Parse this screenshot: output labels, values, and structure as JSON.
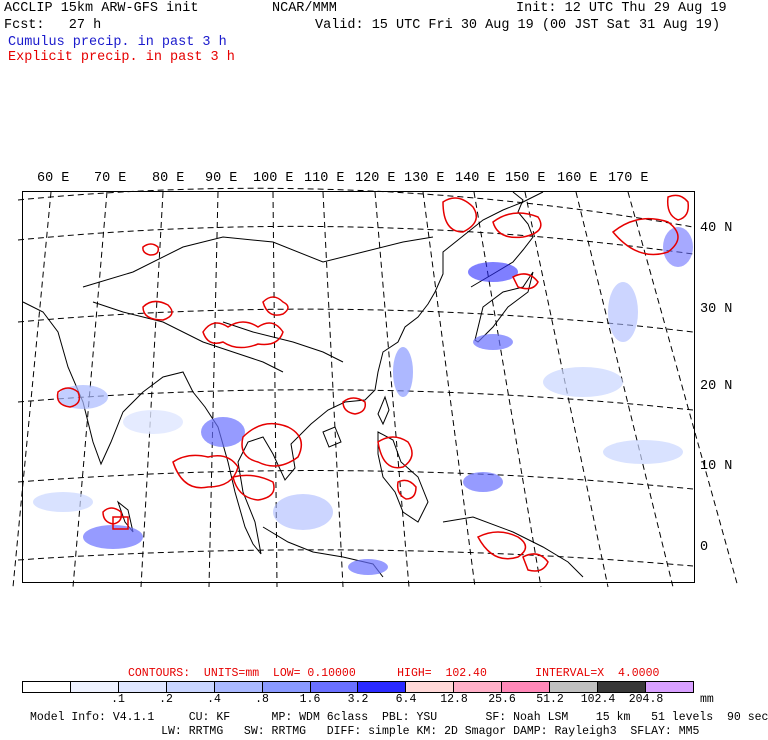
{
  "header": {
    "line1_left": "ACCLIP 15km ARW-GFS init",
    "line1_center": "NCAR/MMM",
    "line1_right": "Init: 12 UTC Thu 29 Aug 19",
    "line2_left": "Fcst:   27 h",
    "line2_right": "Valid: 15 UTC Fri 30 Aug 19 (00 JST Sat 31 Aug 19)",
    "line3": "Cumulus precip. in past 3 h",
    "line4": "Explicit precip. in past 3 h"
  },
  "map": {
    "lon_labels": [
      "60 E",
      "70 E",
      "80 E",
      "90 E",
      "100 E",
      "110 E",
      "120 E",
      "130 E",
      "140 E",
      "150 E",
      "160 E",
      "170 E"
    ],
    "lat_labels": [
      "40 N",
      "30 N",
      "20 N",
      "10 N",
      "0"
    ]
  },
  "contours": {
    "label": "CONTOURS:  UNITS=mm  LOW= 0.10000      HIGH=  102.40       INTERVAL=X  4.0000"
  },
  "legend": {
    "colors": [
      "#ffffff",
      "#eef2ff",
      "#dfe6ff",
      "#c9d5ff",
      "#aab9ff",
      "#8a9aff",
      "#6a70ff",
      "#2a2aff",
      "#ffd8d8",
      "#ffb0c8",
      "#ff88b8",
      "#c0c0c0",
      "#383838",
      "#d8a0ff"
    ],
    "ticks": [
      ".1",
      ".2",
      ".4",
      ".8",
      "1.6",
      "3.2",
      "6.4",
      "12.8",
      "25.6",
      "51.2",
      "102.4",
      "204.8"
    ],
    "unit": "mm"
  },
  "footer": {
    "line1": "Model Info: V4.1.1     CU: KF      MP: WDM 6class  PBL: YSU       SF: Noah LSM    15 km   51 levels  90 sec",
    "line2": "                   LW: RRTMG   SW: RRTMG   DIFF: simple KM: 2D Smagor DAMP: Rayleigh3  SFLAY: MM5"
  }
}
